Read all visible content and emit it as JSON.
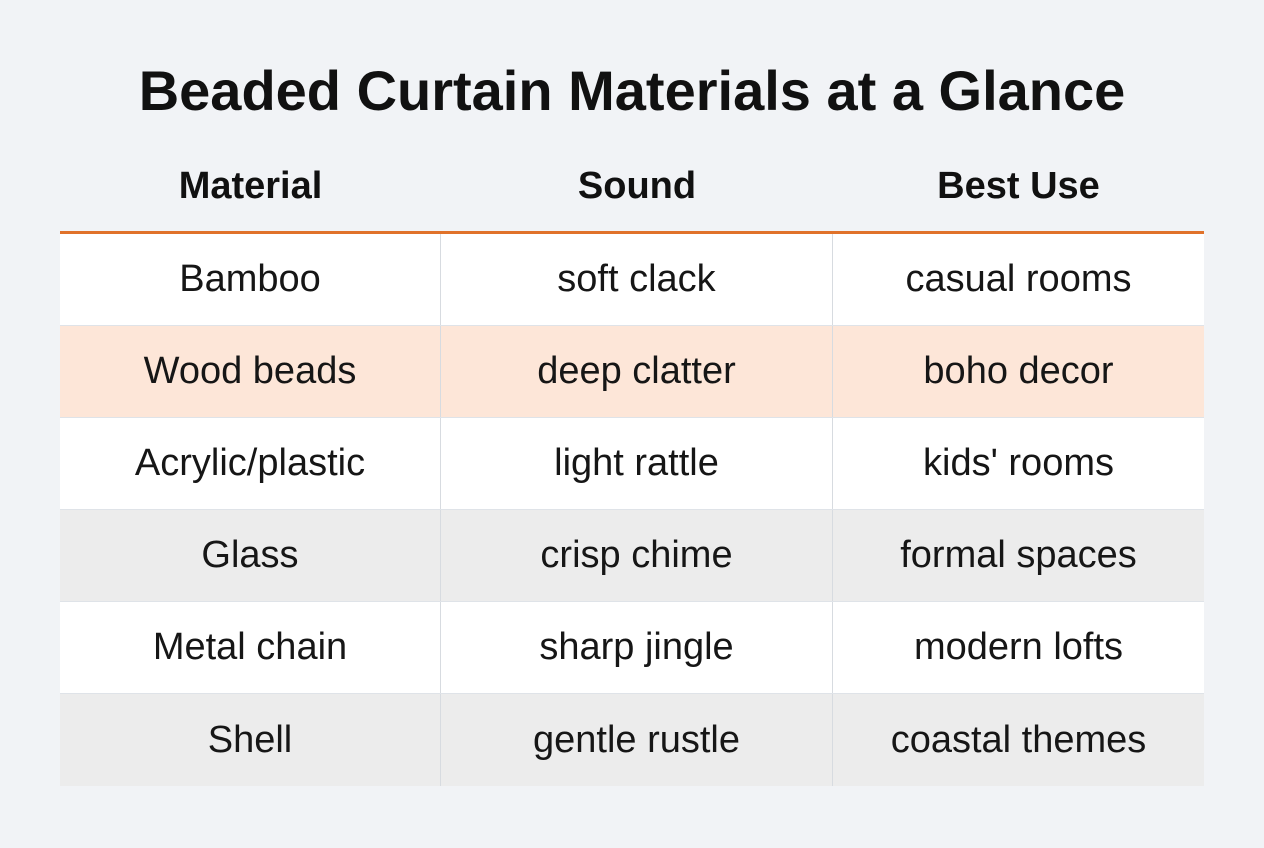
{
  "title": "Beaded Curtain Materials at a Glance",
  "colors": {
    "accent_line": "#e0722a",
    "row_white": "#ffffff",
    "row_highlight": "#fde6d8",
    "row_gray": "#ececec"
  },
  "table": {
    "headers": [
      "Material",
      "Sound",
      "Best Use"
    ],
    "rows": [
      {
        "material": "Bamboo",
        "sound": "soft clack",
        "best_use": "casual rooms",
        "bg": "#ffffff"
      },
      {
        "material": "Wood beads",
        "sound": "deep clatter",
        "best_use": "boho decor",
        "bg": "#fde6d8"
      },
      {
        "material": "Acrylic/plastic",
        "sound": "light rattle",
        "best_use": "kids' rooms",
        "bg": "#ffffff"
      },
      {
        "material": "Glass",
        "sound": "crisp chime",
        "best_use": "formal spaces",
        "bg": "#ececec"
      },
      {
        "material": "Metal chain",
        "sound": "sharp jingle",
        "best_use": "modern lofts",
        "bg": "#ffffff"
      },
      {
        "material": "Shell",
        "sound": "gentle rustle",
        "best_use": "coastal themes",
        "bg": "#ececec"
      }
    ]
  }
}
